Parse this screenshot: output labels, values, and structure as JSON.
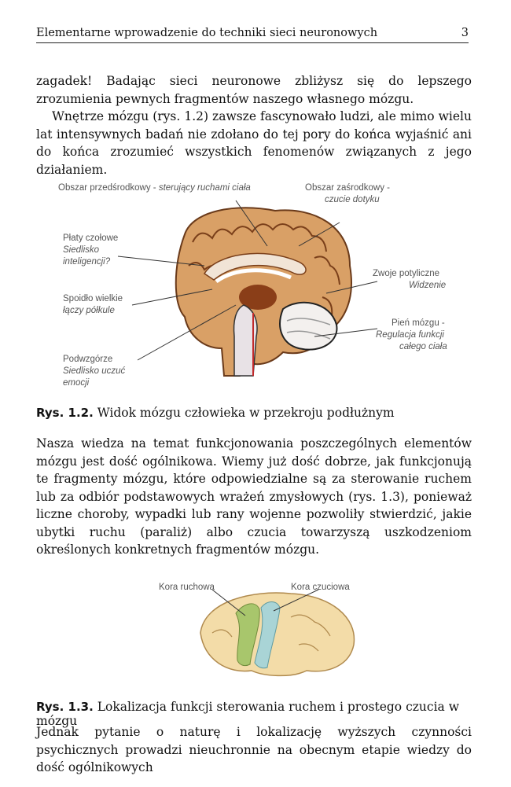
{
  "header": {
    "title": "Elementarne wprowadzenie do techniki sieci neuronowych",
    "page_number": "3"
  },
  "paragraphs": {
    "p1": "zagadek! Badając sieci neuronowe zbliżysz się do lepszego zrozumienia pewnych fragmentów naszego własnego mózgu.",
    "p2": "Wnętrze mózgu (rys. 1.2) zawsze fascynowało ludzi, ale mimo wielu lat intensywnych badań nie zdołano do tej pory do końca wyjaśnić ani do końca zrozumieć wszystkich fenomenów związanych z jego działaniem.",
    "p3": "Nasza wiedza na temat funkcjonowania poszczególnych elementów mózgu jest dość ogólnikowa. Wiemy już dość dobrze, jak funkcjonują te fragmenty mózgu, które odpowiedzialne są za sterowanie ruchem lub za odbiór podstawowych wrażeń zmysłowych (rys. 1.3), ponieważ liczne choroby, wypadki lub rany wojenne pozwoliły stwierdzić, jakie ubytki ruchu (paraliż) albo czucia towarzyszą uszkodzeniom określonych konkretnych fragmentów mózgu.",
    "p4": "Jednak pytanie o naturę i lokalizację wyższych czynności psychicznych prowadzi nieuchronnie na obecnym etapie wiedzy do dość ogólnikowych"
  },
  "figure1": {
    "labels": {
      "precentral": "Obszar przedśrodkowy",
      "precentral_desc": "sterujący ruchami ciała",
      "postcentral": "Obszar zaśrodkowy -",
      "postcentral_desc": "czucie dotyku",
      "frontal": "Płaty czołowe",
      "frontal_desc1": "Siedlisko",
      "frontal_desc2": "inteligencji?",
      "corpus": "Spoidło wielkie",
      "corpus_desc": "łączy półkule",
      "occipital": "Zwoje potyliczne",
      "occipital_desc": "Widzenie",
      "brainstem": "Pień mózgu -",
      "brainstem_desc1": "Regulacja funkcji",
      "brainstem_desc2": "całego ciała",
      "hypothalamus": "Podwzgórze",
      "hypothalamus_desc1": "Siedlisko uczuć",
      "hypothalamus_desc2": "emocji"
    },
    "caption_num": "Rys. 1.2.",
    "caption_text": "Widok mózgu człowieka w przekroju podłużnym"
  },
  "figure2": {
    "labels": {
      "motor": "Kora ruchowa",
      "sensory": "Kora czuciowa"
    },
    "caption_num": "Rys. 1.3.",
    "caption_text": "Lokalizacja funkcji sterowania ruchem i prostego czucia w mózgu"
  }
}
